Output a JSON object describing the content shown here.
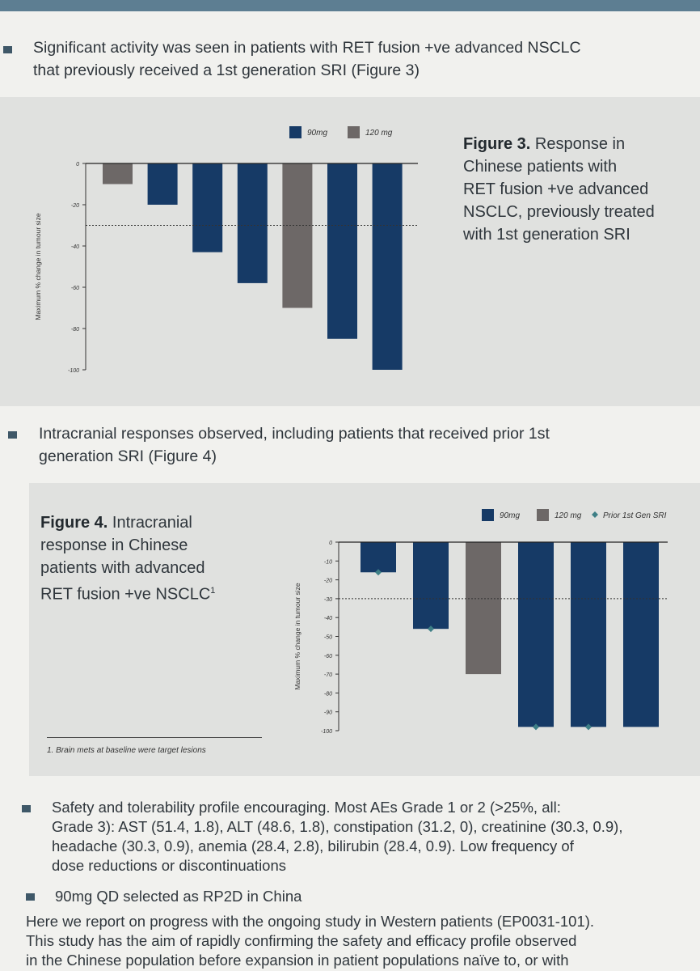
{
  "bullets": {
    "b1_line1": "Significant activity was seen in patients with RET fusion +ve advanced NSCLC",
    "b1_line2": "that previously received a 1st generation SRI (Figure 3)",
    "b2_line1": "Intracranial responses observed, including patients that received prior 1st",
    "b2_line2": "generation SRI (Figure 4)",
    "b3_line1": "Safety and tolerability profile encouraging. Most AEs Grade 1 or 2 (>25%, all:",
    "b3_line2": "Grade 3): AST (51.4, 1.8), ALT (48.6, 1.8), constipation (31.2, 0), creatinine (30.3, 0.9),",
    "b3_line3": "headache (30.3, 0.9), anemia (28.4, 2.8), bilirubin (28.4, 0.9). Low frequency of",
    "b3_line4": "dose reductions or discontinuations",
    "b4_line1": "90mg QD selected as RP2D in China"
  },
  "closing": {
    "line1": "Here we report on progress with the ongoing study in Western patients (EP0031-101).",
    "line2": "This study has the aim of rapidly confirming the safety and efficacy profile observed",
    "line3": "in the Chinese population before expansion in patient populations naïve to, or with"
  },
  "figure3": {
    "caption_bold": "Figure 3.",
    "caption_l1": " Response in",
    "caption_l2": "Chinese patients with",
    "caption_l3": "RET fusion +ve advanced",
    "caption_l4": "NSCLC, previously treated",
    "caption_l5": "with 1st generation SRI"
  },
  "figure4": {
    "caption_bold": "Figure 4.",
    "caption_l1": " Intracranial",
    "caption_l2": "response in Chinese",
    "caption_l3": "patients with advanced",
    "caption_l4": "RET fusion +ve NSCLC",
    "caption_sup": "1",
    "footnote": "1. Brain mets at baseline were target lesions"
  },
  "colors": {
    "dose_90": "#163a66",
    "dose_120": "#6d6867",
    "prior_marker": "#3e7f86"
  },
  "chart_data": [
    {
      "type": "bar",
      "id": "figure3",
      "ylabel": "Maximum % change in tumour size",
      "ylim": [
        -100,
        0
      ],
      "yticks": [
        0,
        -20,
        -40,
        -60,
        -80,
        -100
      ],
      "threshold": -30,
      "legend": [
        "90mg",
        "120 mg"
      ],
      "legend_placement": "top-center",
      "bars": [
        {
          "value": -10,
          "series": "120 mg"
        },
        {
          "value": -20,
          "series": "90mg"
        },
        {
          "value": -43,
          "series": "90mg"
        },
        {
          "value": -58,
          "series": "90mg"
        },
        {
          "value": -70,
          "series": "120 mg"
        },
        {
          "value": -85,
          "series": "90mg"
        },
        {
          "value": -100,
          "series": "90mg"
        }
      ]
    },
    {
      "type": "bar",
      "id": "figure4",
      "ylabel": "Maximum % change in tumour size",
      "ylim": [
        -100,
        0
      ],
      "yticks": [
        0,
        -10,
        -20,
        -30,
        -40,
        -50,
        -60,
        -70,
        -80,
        -90,
        -100
      ],
      "threshold": -30,
      "legend": [
        "90mg",
        "120 mg",
        "Prior 1st Gen SRI"
      ],
      "legend_placement": "top-right",
      "bars": [
        {
          "value": -16,
          "series": "90mg",
          "prior": true
        },
        {
          "value": -46,
          "series": "90mg",
          "prior": true
        },
        {
          "value": -70,
          "series": "120 mg",
          "prior": false
        },
        {
          "value": -98,
          "series": "90mg",
          "prior": true
        },
        {
          "value": -98,
          "series": "90mg",
          "prior": true
        },
        {
          "value": -98,
          "series": "90mg",
          "prior": false
        }
      ]
    }
  ]
}
